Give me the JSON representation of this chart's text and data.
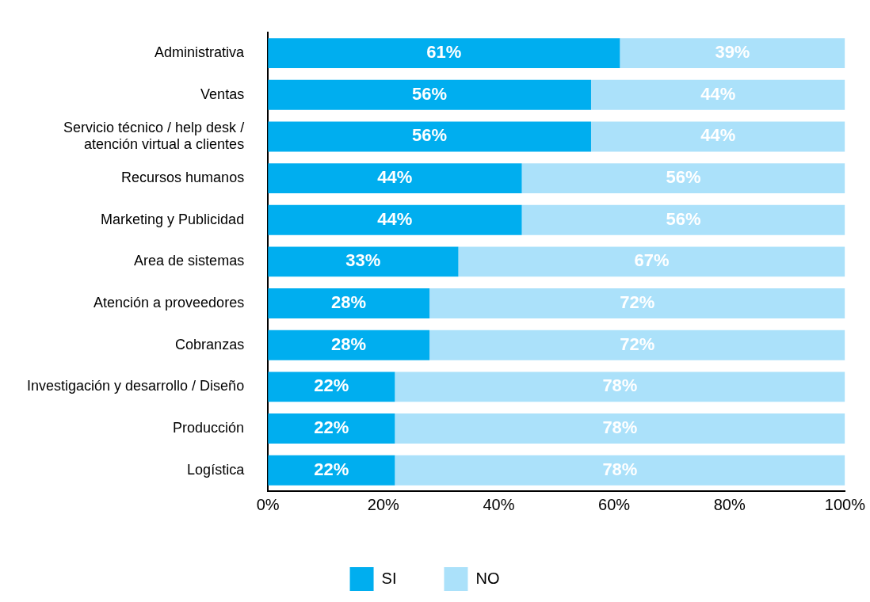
{
  "chart_data": {
    "type": "bar",
    "orientation": "horizontal",
    "stacked": true,
    "categories": [
      "Administrativa",
      "Ventas",
      "Servicio técnico / help desk / atención virtual a clientes",
      "Recursos humanos",
      "Marketing y Publicidad",
      "Area de sistemas",
      "Atención a proveedores",
      "Cobranzas",
      "Investigación y desarrollo / Diseño",
      "Producción",
      "Logística"
    ],
    "series": [
      {
        "name": "SI",
        "color": "#00aeef",
        "values": [
          61,
          56,
          56,
          44,
          44,
          33,
          28,
          28,
          22,
          22,
          22
        ],
        "value_labels": [
          "61%",
          "56%",
          "56%",
          "44%",
          "44%",
          "33%",
          "28%",
          "28%",
          "22%",
          "22%",
          "22%"
        ]
      },
      {
        "name": "NO",
        "color": "#abe1fa",
        "values": [
          39,
          44,
          44,
          56,
          56,
          67,
          72,
          72,
          78,
          78,
          78
        ],
        "value_labels": [
          "39%",
          "44%",
          "44%",
          "56%",
          "56%",
          "67%",
          "72%",
          "72%",
          "78%",
          "78%",
          "78%"
        ]
      }
    ],
    "xlim": [
      0,
      100
    ],
    "xticks": [
      {
        "value": 0,
        "label": "0%"
      },
      {
        "value": 20,
        "label": "20%"
      },
      {
        "value": 40,
        "label": "40%"
      },
      {
        "value": 60,
        "label": "60%"
      },
      {
        "value": 80,
        "label": "80%"
      },
      {
        "value": 100,
        "label": "100%"
      }
    ],
    "grid": false,
    "legend": "bottom"
  }
}
